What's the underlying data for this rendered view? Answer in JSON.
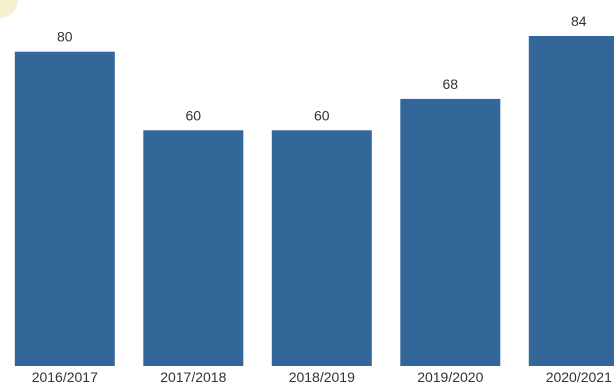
{
  "chart_data": {
    "type": "bar",
    "categories": [
      "2016/2017",
      "2017/2018",
      "2018/2019",
      "2019/2020",
      "2020/2021"
    ],
    "values": [
      80,
      60,
      60,
      68,
      84
    ],
    "title": "",
    "xlabel": "",
    "ylabel": "",
    "ylim": [
      0,
      84
    ],
    "grid": false,
    "bar_color": "#336699",
    "value_labels": [
      "80",
      "60",
      "60",
      "68",
      "84"
    ]
  }
}
